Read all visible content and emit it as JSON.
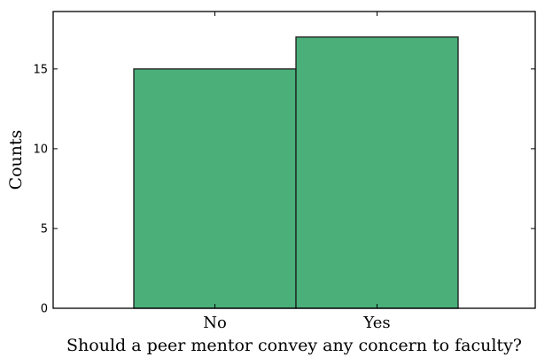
{
  "chart_data": {
    "type": "bar",
    "categories": [
      "No",
      "Yes"
    ],
    "values": [
      15,
      17
    ],
    "xlabel": "Should a peer mentor convey any concern to faculty?",
    "ylabel": "Counts",
    "ylim": [
      0,
      18.6
    ],
    "yticks": [
      "0",
      "5",
      "10",
      "15"
    ],
    "grid": false,
    "bar_color": "#4baf7a",
    "bar_edge_color": "#1a1a1a"
  }
}
